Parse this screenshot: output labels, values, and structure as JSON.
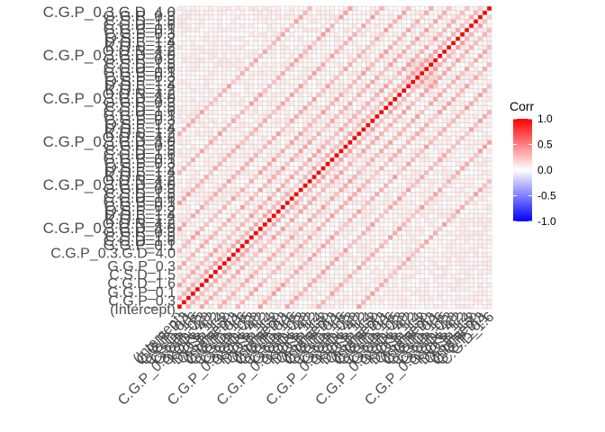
{
  "chart_data": {
    "type": "heatmap",
    "title": "",
    "xlabel": "",
    "ylabel": "",
    "n_variables": 70,
    "row_labels_visible": [
      "(Intercept)",
      "C.G.P_0.3",
      "G.G.P_0.1",
      "C.G.D_1.6",
      "C.S.D_1.5",
      "G.G.P_0.3",
      "C.G.P_0.3.G.D_4.0"
    ],
    "top_label_fragments": [
      "O.O.N_4.2",
      "K.O.S_1.2",
      "D.O.B_1.4",
      "O.S.P_1.2"
    ],
    "diagonal_value": 1.0,
    "off_diagonal_range": [
      0.0,
      0.4
    ],
    "colorscale": {
      "low": "#0000ff",
      "mid": "#ffffff",
      "high": "#ff0000"
    },
    "legend": {
      "title": "Corr",
      "ticks": [
        "1.0",
        "0.5",
        "0.0",
        "-0.5",
        "-1.0"
      ],
      "tick_values": [
        1.0,
        0.5,
        0.0,
        -0.5,
        -1.0
      ],
      "range": [
        -1.0,
        1.0
      ],
      "placement": "right"
    },
    "band_offsets": [
      2,
      5,
      9,
      13,
      18,
      24,
      31,
      40
    ]
  }
}
